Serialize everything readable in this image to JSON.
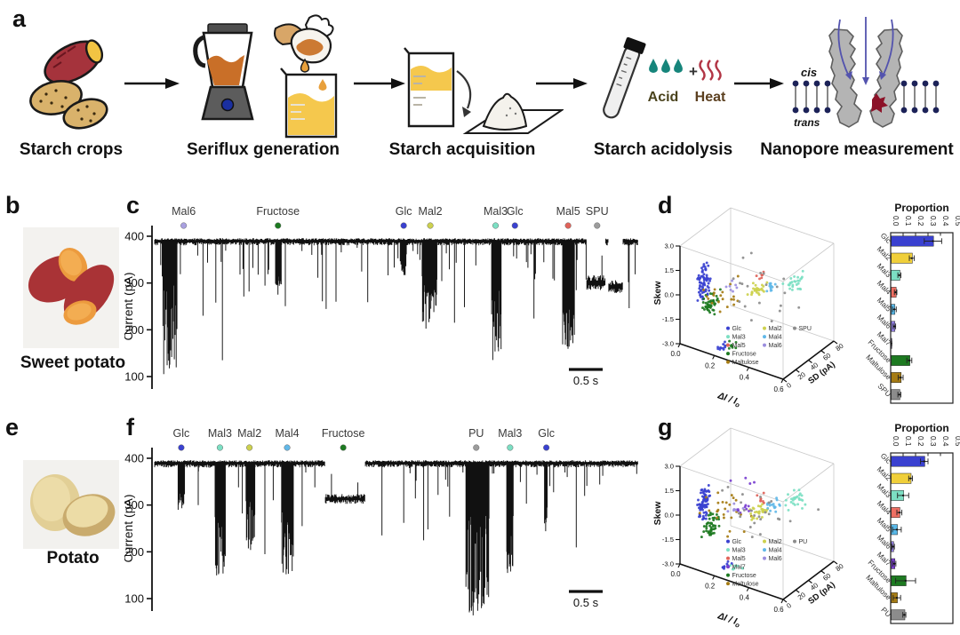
{
  "figure": {
    "panel_letters": {
      "a": "a",
      "b": "b",
      "c": "c",
      "d": "d",
      "e": "e",
      "f": "f",
      "g": "g"
    },
    "workflow": {
      "stages": [
        {
          "label": "Starch crops"
        },
        {
          "label": "Seriflux generation"
        },
        {
          "label": "Starch acquisition"
        },
        {
          "label": "Starch acidolysis"
        },
        {
          "label": "Nanopore measurement"
        }
      ],
      "acid": "Acid",
      "heat": "Heat",
      "plus": "+",
      "cis": "cis",
      "trans": "trans"
    },
    "photos": {
      "sweet_potato": "Sweet potato",
      "potato": "Potato"
    }
  },
  "colors": {
    "Glc": "#3a41d0",
    "Mal2": "#cdd14e",
    "Mal3": "#7cdfc3",
    "Mal4": "#62b8e8",
    "Mal5": "#e0635a",
    "Mal6": "#9b8ede",
    "Mal7": "#7a3fd0",
    "Fructose": "#1d7a21",
    "Maltulose": "#a67c14",
    "SPU": "#8c8c8c",
    "PU": "#8c8c8c"
  },
  "chart_data": [
    {
      "id": "trace_c",
      "type": "line",
      "panel": "c",
      "ylabel": "Current (pA)",
      "yticks": [
        400,
        300,
        200,
        100
      ],
      "baseline_pA": 390,
      "scale_bar": "0.5 s",
      "labels": [
        {
          "text": "Mal6",
          "color": "#a9a0e0",
          "x": 0.06
        },
        {
          "text": "Fructose",
          "color": "#1d7a21",
          "x": 0.255
        },
        {
          "text": "Glc",
          "color": "#3a41d0",
          "x": 0.515
        },
        {
          "text": "Mal2",
          "color": "#cdd14e",
          "x": 0.57
        },
        {
          "text": "Mal3",
          "color": "#7cdfc3",
          "x": 0.705
        },
        {
          "text": "Glc",
          "color": "#3a41d0",
          "x": 0.745
        },
        {
          "text": "Mal5",
          "color": "#e0635a",
          "x": 0.855
        },
        {
          "text": "SPU",
          "color": "#9c9c9c",
          "x": 0.915
        }
      ],
      "noise": {
        "p1": 0.1,
        "a1": 300,
        "b1": 388,
        "p2": 0.032,
        "a2": 235,
        "b2": 300,
        "p3": 0.007,
        "a3": 160,
        "b3": 235
      },
      "events": [
        {
          "type": "block",
          "x0": 0.018,
          "x1": 0.046,
          "dmin": 95,
          "dmax": 340
        },
        {
          "type": "spike",
          "x": 0.1,
          "depth": 230
        },
        {
          "type": "spike",
          "x": 0.14,
          "depth": 135
        },
        {
          "type": "block",
          "x0": 0.249,
          "x1": 0.262,
          "dmin": 293,
          "dmax": 322
        },
        {
          "type": "spike",
          "x": 0.255,
          "depth": 275
        },
        {
          "type": "block",
          "x0": 0.508,
          "x1": 0.52,
          "dmin": 315,
          "dmax": 348
        },
        {
          "type": "block",
          "x0": 0.553,
          "x1": 0.583,
          "dmin": 197,
          "dmax": 315
        },
        {
          "type": "spike",
          "x": 0.62,
          "depth": 215
        },
        {
          "type": "block",
          "x0": 0.698,
          "x1": 0.717,
          "dmin": 128,
          "dmax": 305
        },
        {
          "type": "block",
          "x0": 0.843,
          "x1": 0.868,
          "dmin": 152,
          "dmax": 300
        },
        {
          "type": "band",
          "x0": 0.893,
          "x1": 0.932,
          "level": 300,
          "jitter": 13
        },
        {
          "type": "band",
          "x0": 0.938,
          "x1": 0.968,
          "level": 292,
          "jitter": 12
        }
      ]
    },
    {
      "id": "scatter_d",
      "type": "scatter",
      "panel": "d",
      "xlabel": "ΔI / I",
      "xlabel_sub": "o",
      "ylabel": "Skew",
      "zlabel": "SD (pA)",
      "xticks": [
        "0.0",
        "0.2",
        "0.4",
        "0.6"
      ],
      "yticks": [
        "3.0",
        "1.5",
        "0.0",
        "-1.5",
        "-3.0"
      ],
      "zticks": [
        "0",
        "20",
        "40",
        "60",
        "80"
      ],
      "xlim": [
        0,
        0.6
      ],
      "ylim": [
        -3,
        3
      ],
      "zlim": [
        0,
        80
      ],
      "legend_columns": [
        [
          "Glc",
          "Mal3",
          "Mal5",
          "Fructose",
          "Maltulose"
        ],
        [
          "Mal2",
          "Mal4",
          "Mal6"
        ],
        [
          "SPU"
        ]
      ],
      "clusters": [
        {
          "name": "Glc",
          "dI": 0.105,
          "sd": 8,
          "skew": 0.9,
          "sdI": 0.008,
          "sSD": 5,
          "sSk": 1.2,
          "n": 70
        },
        {
          "name": "Fructose",
          "dI": 0.13,
          "sd": 12,
          "skew": -0.4,
          "sdI": 0.015,
          "sSD": 6,
          "sSk": 0.8,
          "n": 45
        },
        {
          "name": "Maltulose",
          "dI": 0.17,
          "sd": 18,
          "skew": 0.1,
          "sdI": 0.07,
          "sSD": 10,
          "sSk": 1.2,
          "n": 20
        },
        {
          "name": "Mal2",
          "dI": 0.3,
          "sd": 38,
          "skew": 0.3,
          "sdI": 0.02,
          "sSD": 7,
          "sSk": 0.4,
          "n": 28
        },
        {
          "name": "Mal4",
          "dI": 0.36,
          "sd": 45,
          "skew": 0.55,
          "sdI": 0.015,
          "sSD": 5,
          "sSk": 0.3,
          "n": 12
        },
        {
          "name": "Mal3",
          "dI": 0.46,
          "sd": 57,
          "skew": 0.8,
          "sdI": 0.025,
          "sSD": 6,
          "sSk": 0.45,
          "n": 26
        },
        {
          "name": "Mal5",
          "dI": 0.325,
          "sd": 42,
          "skew": 1.15,
          "sdI": 0.01,
          "sSD": 3,
          "sSk": 0.2,
          "n": 6
        },
        {
          "name": "Mal6",
          "dI": 0.22,
          "sd": 24,
          "skew": 0.5,
          "sdI": 0.02,
          "sSD": 4,
          "sSk": 0.3,
          "n": 7
        },
        {
          "name": "SPU",
          "dI": 0.3,
          "sd": 40,
          "skew": 0.4,
          "sdI": 0.14,
          "sSD": 18,
          "sSk": 1.4,
          "n": 20
        },
        {
          "name": "Glc",
          "dI": 0.215,
          "sd": 12,
          "skew": -2.7,
          "sdI": 0.012,
          "sSD": 4,
          "sSk": 0.15,
          "n": 12
        },
        {
          "name": "Fructose",
          "dI": 0.25,
          "sd": 14,
          "skew": -2.6,
          "sdI": 0.02,
          "sSD": 4,
          "sSk": 0.2,
          "n": 9
        }
      ]
    },
    {
      "id": "bars_d",
      "type": "bar",
      "panel": "d",
      "title": "Proportion",
      "xticks": [
        "0.0",
        "0.1",
        "0.2",
        "0.3",
        "0.4",
        "0.5"
      ],
      "xmax": 0.5,
      "categories": [
        "Glc",
        "Mal2",
        "Mal3",
        "Mal4",
        "Mal5",
        "Mal6",
        "Mal7",
        "Fructose",
        "Maltulose",
        "SPU"
      ],
      "values": [
        0.34,
        0.17,
        0.07,
        0.04,
        0.03,
        0.03,
        0.005,
        0.15,
        0.08,
        0.07
      ],
      "errors": [
        0.07,
        0.02,
        0.012,
        0.01,
        0.015,
        0.01,
        0.004,
        0.02,
        0.02,
        0.012
      ],
      "colors": [
        "#3a41d0",
        "#f0cf3a",
        "#7cdfc3",
        "#ee6f63",
        "#58b8e8",
        "#8f7ede",
        "#7a3fd0",
        "#1d7a21",
        "#a67c14",
        "#8c8c8c"
      ]
    },
    {
      "id": "trace_f",
      "type": "line",
      "panel": "f",
      "ylabel": "Current (pA)",
      "yticks": [
        400,
        300,
        200,
        100
      ],
      "baseline_pA": 390,
      "scale_bar": "0.5 s",
      "labels": [
        {
          "text": "Glc",
          "color": "#3a41d0",
          "x": 0.055
        },
        {
          "text": "Mal3",
          "color": "#7cdfc3",
          "x": 0.135
        },
        {
          "text": "Mal2",
          "color": "#cdd14e",
          "x": 0.196
        },
        {
          "text": "Mal4",
          "color": "#62b8e8",
          "x": 0.274
        },
        {
          "text": "Fructose",
          "color": "#1d7a21",
          "x": 0.39
        },
        {
          "text": "PU",
          "color": "#9c9c9c",
          "x": 0.665
        },
        {
          "text": "Mal3",
          "color": "#7cdfc3",
          "x": 0.735
        },
        {
          "text": "Glc",
          "color": "#3a41d0",
          "x": 0.81
        }
      ],
      "noise": {
        "p1": 0.06,
        "a1": 310,
        "b1": 388,
        "p2": 0.012,
        "a2": 250,
        "b2": 310,
        "p3": 0.003,
        "a3": 200,
        "b3": 250
      },
      "events": [
        {
          "type": "block",
          "x0": 0.048,
          "x1": 0.062,
          "dmin": 288,
          "dmax": 352
        },
        {
          "type": "spike",
          "x": 0.09,
          "depth": 300
        },
        {
          "type": "block",
          "x0": 0.124,
          "x1": 0.146,
          "dmin": 148,
          "dmax": 312
        },
        {
          "type": "block",
          "x0": 0.188,
          "x1": 0.207,
          "dmin": 200,
          "dmax": 318
        },
        {
          "type": "spike",
          "x": 0.228,
          "depth": 195
        },
        {
          "type": "block",
          "x0": 0.262,
          "x1": 0.286,
          "dmin": 150,
          "dmax": 302
        },
        {
          "type": "spike",
          "x": 0.305,
          "depth": 255
        },
        {
          "type": "band",
          "x0": 0.352,
          "x1": 0.435,
          "level": 313,
          "jitter": 8
        },
        {
          "type": "spike",
          "x": 0.47,
          "depth": 235
        },
        {
          "type": "spike",
          "x": 0.515,
          "depth": 262
        },
        {
          "type": "spike",
          "x": 0.565,
          "depth": 248
        },
        {
          "type": "spike",
          "x": 0.61,
          "depth": 275
        },
        {
          "type": "block",
          "x0": 0.643,
          "x1": 0.692,
          "dmin": 62,
          "dmax": 300
        },
        {
          "type": "block",
          "x0": 0.728,
          "x1": 0.742,
          "dmin": 140,
          "dmax": 300
        },
        {
          "type": "block",
          "x0": 0.805,
          "x1": 0.812,
          "dmin": 238,
          "dmax": 300
        }
      ]
    },
    {
      "id": "scatter_g",
      "type": "scatter",
      "panel": "g",
      "xlabel": "ΔI / I",
      "xlabel_sub": "o",
      "ylabel": "Skew",
      "zlabel": "SD (pA)",
      "xticks": [
        "0.0",
        "0.2",
        "0.4",
        "0.6"
      ],
      "yticks": [
        "3.0",
        "1.5",
        "0.0",
        "-1.5",
        "-3.0"
      ],
      "zticks": [
        "0",
        "20",
        "40",
        "60",
        "80"
      ],
      "xlim": [
        0,
        0.6
      ],
      "ylim": [
        -3,
        3
      ],
      "zlim": [
        0,
        80
      ],
      "legend_columns": [
        [
          "Glc",
          "Mal3",
          "Mal5",
          "Mal7",
          "Fructose",
          "Maltulose"
        ],
        [
          "Mal2",
          "Mal4",
          "Mal6"
        ],
        [
          "PU"
        ]
      ],
      "clusters": [
        {
          "name": "Glc",
          "dI": 0.105,
          "sd": 8,
          "skew": 0.9,
          "sdI": 0.008,
          "sSD": 5,
          "sSk": 1.2,
          "n": 75
        },
        {
          "name": "Fructose",
          "dI": 0.14,
          "sd": 12,
          "skew": -0.5,
          "sdI": 0.018,
          "sSD": 6,
          "sSk": 0.8,
          "n": 45
        },
        {
          "name": "Maltulose",
          "dI": 0.2,
          "sd": 20,
          "skew": 0.2,
          "sdI": 0.07,
          "sSD": 10,
          "sSk": 1.3,
          "n": 25
        },
        {
          "name": "Mal2",
          "dI": 0.31,
          "sd": 38,
          "skew": 0.2,
          "sdI": 0.02,
          "sSD": 7,
          "sSk": 0.5,
          "n": 30
        },
        {
          "name": "Mal4",
          "dI": 0.37,
          "sd": 46,
          "skew": 0.6,
          "sdI": 0.02,
          "sSD": 5,
          "sSk": 0.4,
          "n": 16
        },
        {
          "name": "Mal3",
          "dI": 0.47,
          "sd": 58,
          "skew": 0.9,
          "sdI": 0.03,
          "sSD": 6,
          "sSk": 0.5,
          "n": 26
        },
        {
          "name": "Mal5",
          "dI": 0.33,
          "sd": 42,
          "skew": 1.0,
          "sdI": 0.015,
          "sSD": 4,
          "sSk": 0.3,
          "n": 8
        },
        {
          "name": "Mal6",
          "dI": 0.23,
          "sd": 26,
          "skew": 0.4,
          "sdI": 0.02,
          "sSD": 4,
          "sSk": 0.3,
          "n": 8
        },
        {
          "name": "Mal7",
          "dI": 0.26,
          "sd": 30,
          "skew": 0.5,
          "sdI": 0.02,
          "sSD": 4,
          "sSk": 0.3,
          "n": 8
        },
        {
          "name": "Mal7",
          "dI": 0.3,
          "sd": 20,
          "skew": 2.6,
          "sdI": 0.04,
          "sSD": 6,
          "sSk": 0.2,
          "n": 4
        },
        {
          "name": "PU",
          "dI": 0.3,
          "sd": 40,
          "skew": 0.3,
          "sdI": 0.14,
          "sSD": 18,
          "sSk": 1.6,
          "n": 25
        },
        {
          "name": "Glc",
          "dI": 0.22,
          "sd": 12,
          "skew": -2.7,
          "sdI": 0.012,
          "sSD": 4,
          "sSk": 0.15,
          "n": 12
        },
        {
          "name": "Mal3",
          "dI": 0.27,
          "sd": 14,
          "skew": -2.7,
          "sdI": 0.02,
          "sSD": 4,
          "sSk": 0.2,
          "n": 8
        }
      ]
    },
    {
      "id": "bars_g",
      "type": "bar",
      "panel": "g",
      "title": "Proportion",
      "xticks": [
        "0.0",
        "0.1",
        "0.2",
        "0.3",
        "0.4",
        "0.5"
      ],
      "xmax": 0.5,
      "categories": [
        "Glc",
        "Mal2",
        "Mal3",
        "Mal4",
        "Mal5",
        "Mal6",
        "Mal7",
        "Fructose",
        "Maltulose",
        "PU"
      ],
      "values": [
        0.27,
        0.16,
        0.1,
        0.07,
        0.05,
        0.02,
        0.03,
        0.12,
        0.05,
        0.11
      ],
      "errors": [
        0.03,
        0.015,
        0.045,
        0.02,
        0.035,
        0.01,
        0.012,
        0.08,
        0.03,
        0.012
      ],
      "colors": [
        "#3a41d0",
        "#f0cf3a",
        "#7cdfc3",
        "#ee6f63",
        "#58b8e8",
        "#8f7ede",
        "#7a3fd0",
        "#1d7a21",
        "#a67c14",
        "#8c8c8c"
      ]
    }
  ]
}
